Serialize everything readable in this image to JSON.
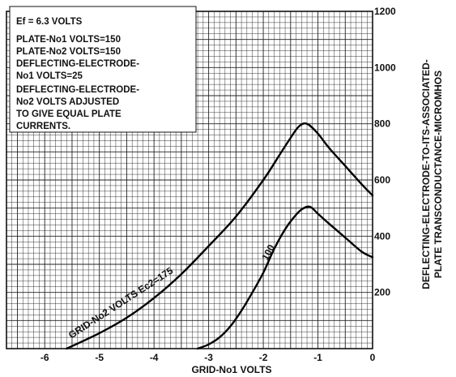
{
  "chart_data": {
    "type": "line",
    "xlabel": "GRID-No1 VOLTS",
    "ylabel_line1": "DEFLECTING-ELECTRODE-TO-ITS-ASSOCIATED-",
    "ylabel_line2": "PLATE TRANSCONDUCTANCE-MICROMHOS",
    "xlim": [
      -6.7,
      0
    ],
    "ylim": [
      0,
      1200
    ],
    "x_ticks": [
      {
        "value": -6,
        "label": "-6"
      },
      {
        "value": -5,
        "label": "-5"
      },
      {
        "value": -4,
        "label": "-4"
      },
      {
        "value": -3,
        "label": "-3"
      },
      {
        "value": -2,
        "label": "-2"
      },
      {
        "value": -1,
        "label": "-1"
      },
      {
        "value": 0,
        "label": "0"
      }
    ],
    "y_ticks": [
      {
        "value": 200,
        "label": "200"
      },
      {
        "value": 400,
        "label": "400"
      },
      {
        "value": 600,
        "label": "600"
      },
      {
        "value": 800,
        "label": "800"
      },
      {
        "value": 1000,
        "label": "1000"
      },
      {
        "value": 1200,
        "label": "1200"
      }
    ],
    "grid": true,
    "annotations": [
      "Ef = 6.3 VOLTS",
      "PLATE-No1 VOLTS=150",
      "PLATE-No2 VOLTS=150",
      "DEFLECTING-ELECTRODE-",
      "No1 VOLTS=25",
      "DEFLECTING-ELECTRODE-",
      "No2 VOLTS ADJUSTED",
      "TO GIVE EQUAL PLATE",
      "CURRENTS."
    ],
    "series": [
      {
        "name": "GRID-No2 VOLTS Ec2=175",
        "x": [
          -5.6,
          -5.0,
          -4.5,
          -4.0,
          -3.5,
          -3.0,
          -2.5,
          -2.0,
          -1.7,
          -1.5,
          -1.35,
          -1.2,
          -1.0,
          -0.8,
          -0.5,
          -0.2,
          0
        ],
        "y": [
          0,
          55,
          110,
          180,
          265,
          365,
          470,
          600,
          690,
          750,
          790,
          800,
          765,
          715,
          650,
          585,
          545
        ]
      },
      {
        "name": "100",
        "x": [
          -3.2,
          -3.0,
          -2.8,
          -2.6,
          -2.4,
          -2.2,
          -2.0,
          -1.8,
          -1.6,
          -1.45,
          -1.3,
          -1.15,
          -1.0,
          -0.8,
          -0.5,
          -0.2,
          0
        ],
        "y": [
          0,
          15,
          40,
          80,
          135,
          200,
          270,
          355,
          425,
          465,
          495,
          505,
          480,
          445,
          395,
          345,
          325
        ]
      }
    ]
  }
}
